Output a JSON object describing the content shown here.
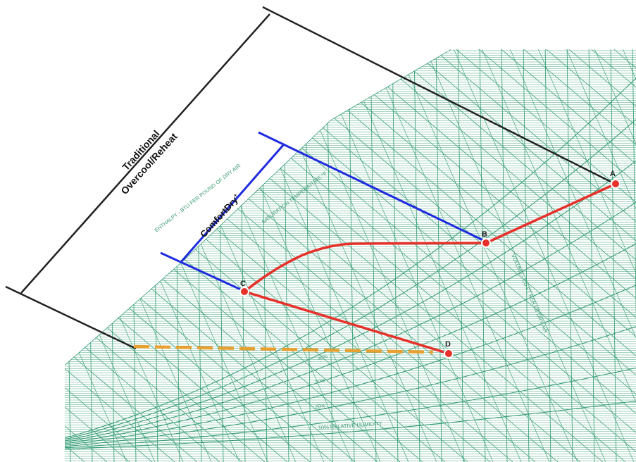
{
  "labels": {
    "traditional_line1": "Traditional",
    "traditional_line2": "Overcool/Reheat",
    "comfortdry": "ComfortDry",
    "comfortdry_mark": "+"
  },
  "chart_labels": {
    "enthalpy": "ENTHALPY - BTU PER POUND OF DRY AIR",
    "saturation": "SATURATION TEMPERATURE °F",
    "volume": "VOLUME - CU FT PER LB DRY AIR",
    "rh10": "10% RELATIVE HUMIDITY",
    "rh20": "20%",
    "rh30": "30%",
    "rh40": "40%"
  },
  "points": [
    {
      "id": "A",
      "label": "A"
    },
    {
      "id": "B",
      "label": "B"
    },
    {
      "id": "C",
      "label": "C"
    },
    {
      "id": "D",
      "label": "D"
    }
  ],
  "colors": {
    "grid": "#2e9a70",
    "process": "#e8302a",
    "comfortdry": "#1f2be0",
    "traditional": "#222222",
    "orange": "#e8a030",
    "point": "#e8302a"
  }
}
